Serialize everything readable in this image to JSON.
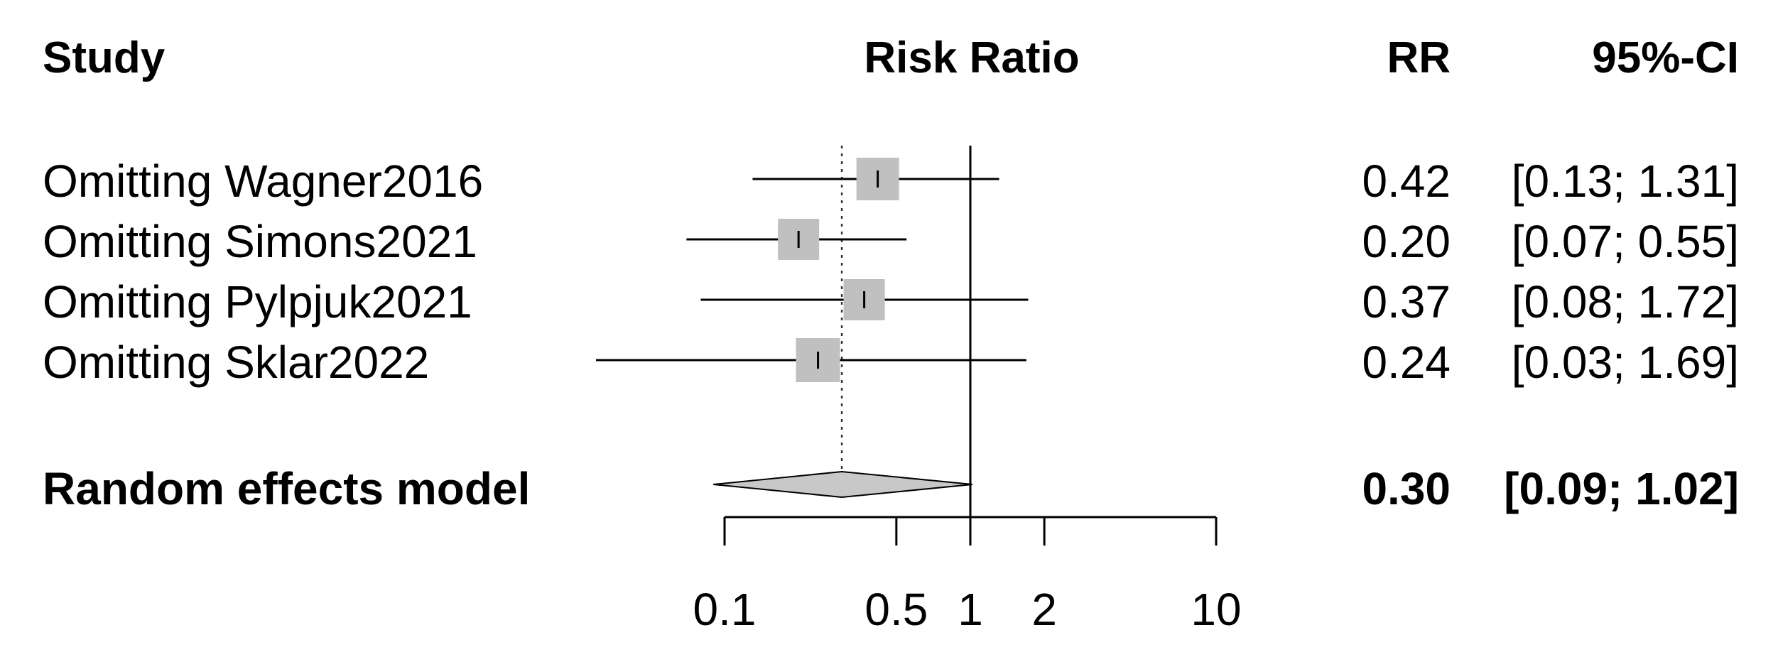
{
  "chart_data": {
    "type": "forest",
    "title": "",
    "columns": {
      "study": "Study",
      "effect": "Risk Ratio",
      "rr": "RR",
      "ci": "95%-CI"
    },
    "xscale": "log",
    "xlim": [
      0.1,
      10
    ],
    "xticks": [
      0.1,
      0.5,
      1,
      2,
      10
    ],
    "xtick_labels": [
      "0.1",
      "0.5",
      "1",
      "2",
      "10"
    ],
    "reference_line": 1,
    "pooled_line": 0.3,
    "studies": [
      {
        "label": "Omitting Wagner2016",
        "rr": 0.42,
        "lower": 0.13,
        "upper": 1.31,
        "rr_text": "0.42",
        "ci_text": "[0.13; 1.31]"
      },
      {
        "label": "Omitting Simons2021",
        "rr": 0.2,
        "lower": 0.07,
        "upper": 0.55,
        "rr_text": "0.20",
        "ci_text": "[0.07; 0.55]"
      },
      {
        "label": "Omitting Pylpjuk2021",
        "rr": 0.37,
        "lower": 0.08,
        "upper": 1.72,
        "rr_text": "0.37",
        "ci_text": "[0.08; 1.72]"
      },
      {
        "label": "Omitting Sklar2022",
        "rr": 0.24,
        "lower": 0.03,
        "upper": 1.69,
        "rr_text": "0.24",
        "ci_text": "[0.03; 1.69]"
      }
    ],
    "pooled": {
      "label": "Random effects model",
      "rr": 0.3,
      "lower": 0.09,
      "upper": 1.02,
      "rr_text": "0.30",
      "ci_text": "[0.09; 1.02]"
    },
    "colors": {
      "box": "#c0c0c0",
      "diamond": "#c8c8c8",
      "line": "#000000"
    }
  }
}
